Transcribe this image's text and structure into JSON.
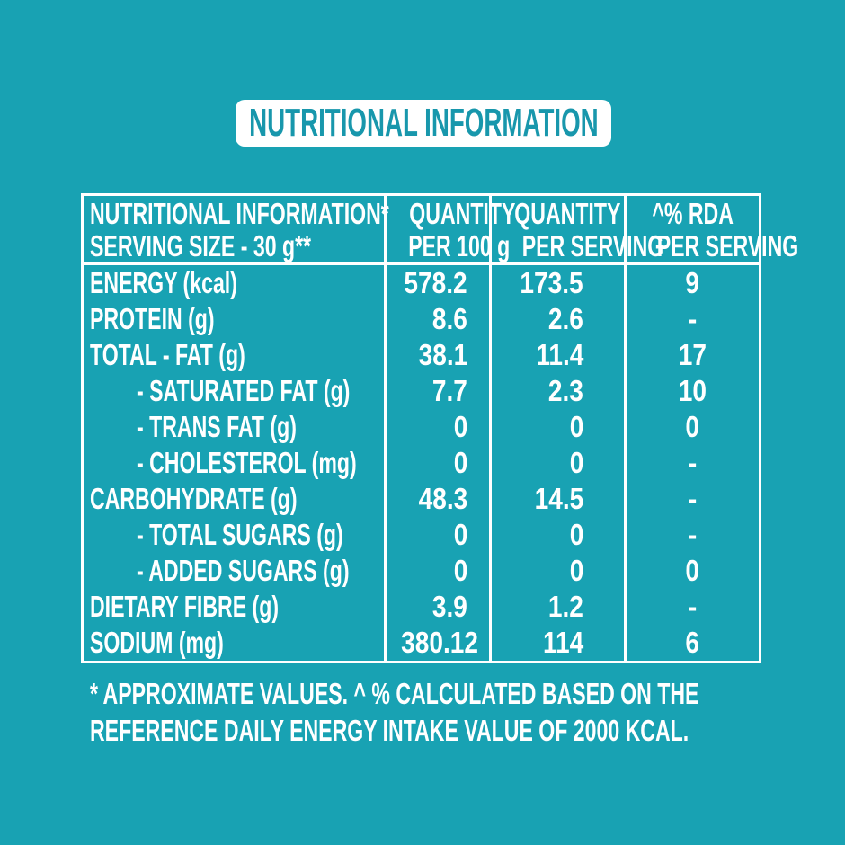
{
  "page": {
    "background_color": "#18A2B3",
    "accent_color": "#1897AC",
    "text_color": "#FFFFFF"
  },
  "banner": {
    "title": "NUTRITIONAL INFORMATION"
  },
  "table": {
    "header": {
      "nutrient_line1": "NUTRITIONAL INFORMATION*",
      "nutrient_line2": "SERVING SIZE - 30 g**",
      "per100g_line1": "QUANTITY",
      "per100g_line2": "PER 100 g",
      "per_serving_line1": "QUANTITY",
      "per_serving_line2": "PER SERVING",
      "rda_line1": "^% RDA",
      "rda_line2": "PER SERVING"
    },
    "rows": [
      {
        "label": "ENERGY (kcal)",
        "indent": false,
        "per_100g": "578.2",
        "per_serving": "173.5",
        "rda_per_serving": "9"
      },
      {
        "label": "PROTEIN (g)",
        "indent": false,
        "per_100g": "8.6",
        "per_serving": "2.6",
        "rda_per_serving": "-"
      },
      {
        "label": "TOTAL - FAT (g)",
        "indent": false,
        "per_100g": "38.1",
        "per_serving": "11.4",
        "rda_per_serving": "17"
      },
      {
        "label": "- SATURATED FAT (g)",
        "indent": true,
        "per_100g": "7.7",
        "per_serving": "2.3",
        "rda_per_serving": "10"
      },
      {
        "label": "- TRANS FAT (g)",
        "indent": true,
        "per_100g": "0",
        "per_serving": "0",
        "rda_per_serving": "0"
      },
      {
        "label": "- CHOLESTEROL (mg)",
        "indent": true,
        "per_100g": "0",
        "per_serving": "0",
        "rda_per_serving": "-"
      },
      {
        "label": "CARBOHYDRATE (g)",
        "indent": false,
        "per_100g": "48.3",
        "per_serving": "14.5",
        "rda_per_serving": "-"
      },
      {
        "label": "- TOTAL SUGARS (g)",
        "indent": true,
        "per_100g": "0",
        "per_serving": "0",
        "rda_per_serving": "-"
      },
      {
        "label": "- ADDED SUGARS (g)",
        "indent": true,
        "per_100g": "0",
        "per_serving": "0",
        "rda_per_serving": "0"
      },
      {
        "label": "DIETARY FIBRE (g)",
        "indent": false,
        "per_100g": "3.9",
        "per_serving": "1.2",
        "rda_per_serving": "-"
      },
      {
        "label": "SODIUM (mg)",
        "indent": false,
        "per_100g": "380.12",
        "per_serving": "114",
        "rda_per_serving": "6"
      }
    ]
  },
  "footnote": {
    "line1": "* APPROXIMATE VALUES. ^ % CALCULATED BASED ON THE",
    "line2": "REFERENCE DAILY ENERGY INTAKE VALUE OF 2000 KCAL."
  }
}
